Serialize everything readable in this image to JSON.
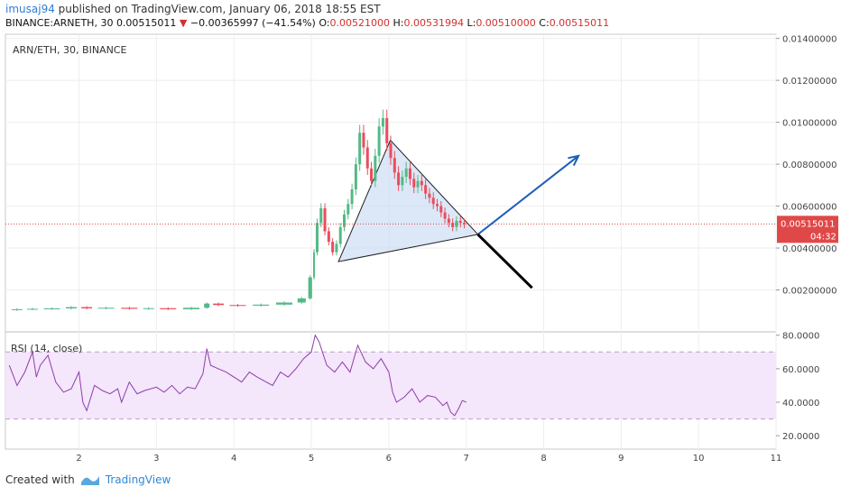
{
  "header": {
    "user": "imusaj94",
    "published": " published on TradingView.com, January 06, 2018 18:55 EST",
    "symbol": "BINANCE:ARNETH, 30",
    "last": "0.00515011",
    "arrow": "▼",
    "change": "−0.00365997 (−41.54%)",
    "o_label": "O:",
    "o": "0.00521000",
    "h_label": "H:",
    "h": "0.00531994",
    "l_label": "L:",
    "l": "0.00510000",
    "c_label": "C:",
    "c": "0.00515011"
  },
  "footer": {
    "created": "Created with",
    "brand": "TradingView"
  },
  "chart_data": [
    {
      "type": "candlestick",
      "title": "ARN/ETH, 30, BINANCE",
      "ylim": [
        0.0,
        0.0142
      ],
      "xlim": [
        1.05,
        11.0
      ],
      "x_ticks": [
        "2",
        "3",
        "4",
        "5",
        "6",
        "7",
        "8",
        "9",
        "10",
        "11"
      ],
      "y_ticks": [
        "0.01400000",
        "0.01200000",
        "0.01000000",
        "0.00800000",
        "0.00600000",
        "0.00400000",
        "0.00200000"
      ],
      "last_price_label": "0.00515011",
      "countdown_label": "04:32",
      "colors": {
        "up": "#53b987",
        "down": "#eb4d5c",
        "last_line": "#e04848",
        "triangle_fill": "#c9daf2"
      },
      "close_series": [
        [
          1.1,
          0.00105
        ],
        [
          1.3,
          0.00108
        ],
        [
          1.5,
          0.0011
        ],
        [
          1.8,
          0.00112
        ],
        [
          2.0,
          0.00118
        ],
        [
          2.2,
          0.00112
        ],
        [
          2.5,
          0.00115
        ],
        [
          2.8,
          0.0011
        ],
        [
          3.0,
          0.00113
        ],
        [
          3.3,
          0.00108
        ],
        [
          3.6,
          0.00115
        ],
        [
          3.7,
          0.00135
        ],
        [
          3.9,
          0.00128
        ],
        [
          4.2,
          0.00125
        ],
        [
          4.5,
          0.0013
        ],
        [
          4.8,
          0.0014
        ],
        [
          4.95,
          0.0016
        ],
        [
          5.02,
          0.0026
        ],
        [
          5.05,
          0.0038
        ],
        [
          5.1,
          0.0052
        ],
        [
          5.15,
          0.0059
        ],
        [
          5.2,
          0.0048
        ],
        [
          5.25,
          0.0043
        ],
        [
          5.3,
          0.0038
        ],
        [
          5.35,
          0.0042
        ],
        [
          5.4,
          0.005
        ],
        [
          5.45,
          0.0056
        ],
        [
          5.5,
          0.0061
        ],
        [
          5.55,
          0.0068
        ],
        [
          5.6,
          0.008
        ],
        [
          5.65,
          0.0095
        ],
        [
          5.7,
          0.0088
        ],
        [
          5.75,
          0.0078
        ],
        [
          5.8,
          0.0072
        ],
        [
          5.85,
          0.0084
        ],
        [
          5.9,
          0.0098
        ],
        [
          5.95,
          0.0102
        ],
        [
          6.0,
          0.009
        ],
        [
          6.05,
          0.0083
        ],
        [
          6.1,
          0.0076
        ],
        [
          6.15,
          0.007
        ],
        [
          6.2,
          0.0074
        ],
        [
          6.25,
          0.0078
        ],
        [
          6.3,
          0.0073
        ],
        [
          6.35,
          0.0069
        ],
        [
          6.4,
          0.0072
        ],
        [
          6.45,
          0.007
        ],
        [
          6.5,
          0.0066
        ],
        [
          6.55,
          0.0064
        ],
        [
          6.6,
          0.0061
        ],
        [
          6.65,
          0.006
        ],
        [
          6.7,
          0.0057
        ],
        [
          6.75,
          0.0054
        ],
        [
          6.8,
          0.0052
        ],
        [
          6.85,
          0.005
        ],
        [
          6.9,
          0.0053
        ],
        [
          6.95,
          0.0052
        ],
        [
          7.0,
          0.00515
        ]
      ],
      "annotations": {
        "triangle": [
          [
            5.35,
            0.00335
          ],
          [
            6.02,
            0.00915
          ],
          [
            7.15,
            0.00465
          ]
        ],
        "breakout_arrow": {
          "from": [
            7.15,
            0.00465
          ],
          "to": [
            8.45,
            0.0084
          ]
        },
        "breakdown_line": {
          "from": [
            7.15,
            0.00465
          ],
          "to": [
            7.85,
            0.0021
          ]
        }
      }
    },
    {
      "type": "line",
      "title": "RSI (14, close)",
      "ylim": [
        12.0,
        82.0
      ],
      "y_ticks": [
        "80.0000",
        "60.0000",
        "40.0000",
        "20.0000"
      ],
      "bands": [
        30,
        70
      ],
      "color": "#8e3ea8",
      "series": [
        {
          "values": [
            [
              1.1,
              62
            ],
            [
              1.2,
              50
            ],
            [
              1.3,
              58
            ],
            [
              1.4,
              70
            ],
            [
              1.45,
              55
            ],
            [
              1.5,
              62
            ],
            [
              1.6,
              68
            ],
            [
              1.7,
              52
            ],
            [
              1.8,
              46
            ],
            [
              1.9,
              48
            ],
            [
              2.0,
              58
            ],
            [
              2.05,
              40
            ],
            [
              2.1,
              35
            ],
            [
              2.2,
              50
            ],
            [
              2.3,
              47
            ],
            [
              2.4,
              45
            ],
            [
              2.5,
              48
            ],
            [
              2.55,
              40
            ],
            [
              2.65,
              52
            ],
            [
              2.75,
              45
            ],
            [
              2.85,
              47
            ],
            [
              3.0,
              49
            ],
            [
              3.1,
              46
            ],
            [
              3.2,
              50
            ],
            [
              3.3,
              45
            ],
            [
              3.4,
              49
            ],
            [
              3.5,
              48
            ],
            [
              3.6,
              57
            ],
            [
              3.65,
              72
            ],
            [
              3.7,
              62
            ],
            [
              3.8,
              60
            ],
            [
              3.9,
              58
            ],
            [
              4.0,
              55
            ],
            [
              4.1,
              52
            ],
            [
              4.2,
              58
            ],
            [
              4.3,
              55
            ],
            [
              4.5,
              50
            ],
            [
              4.6,
              58
            ],
            [
              4.7,
              55
            ],
            [
              4.8,
              60
            ],
            [
              4.9,
              66
            ],
            [
              5.0,
              70
            ],
            [
              5.05,
              80
            ],
            [
              5.1,
              76
            ],
            [
              5.2,
              62
            ],
            [
              5.3,
              58
            ],
            [
              5.4,
              64
            ],
            [
              5.5,
              58
            ],
            [
              5.6,
              74
            ],
            [
              5.7,
              64
            ],
            [
              5.8,
              60
            ],
            [
              5.9,
              66
            ],
            [
              6.0,
              58
            ],
            [
              6.05,
              46
            ],
            [
              6.1,
              40
            ],
            [
              6.2,
              43
            ],
            [
              6.3,
              48
            ],
            [
              6.4,
              40
            ],
            [
              6.5,
              44
            ],
            [
              6.6,
              43
            ],
            [
              6.7,
              38
            ],
            [
              6.75,
              40
            ],
            [
              6.8,
              34
            ],
            [
              6.85,
              32
            ],
            [
              6.9,
              36
            ],
            [
              6.95,
              41
            ],
            [
              7.0,
              40
            ]
          ]
        }
      ]
    }
  ]
}
